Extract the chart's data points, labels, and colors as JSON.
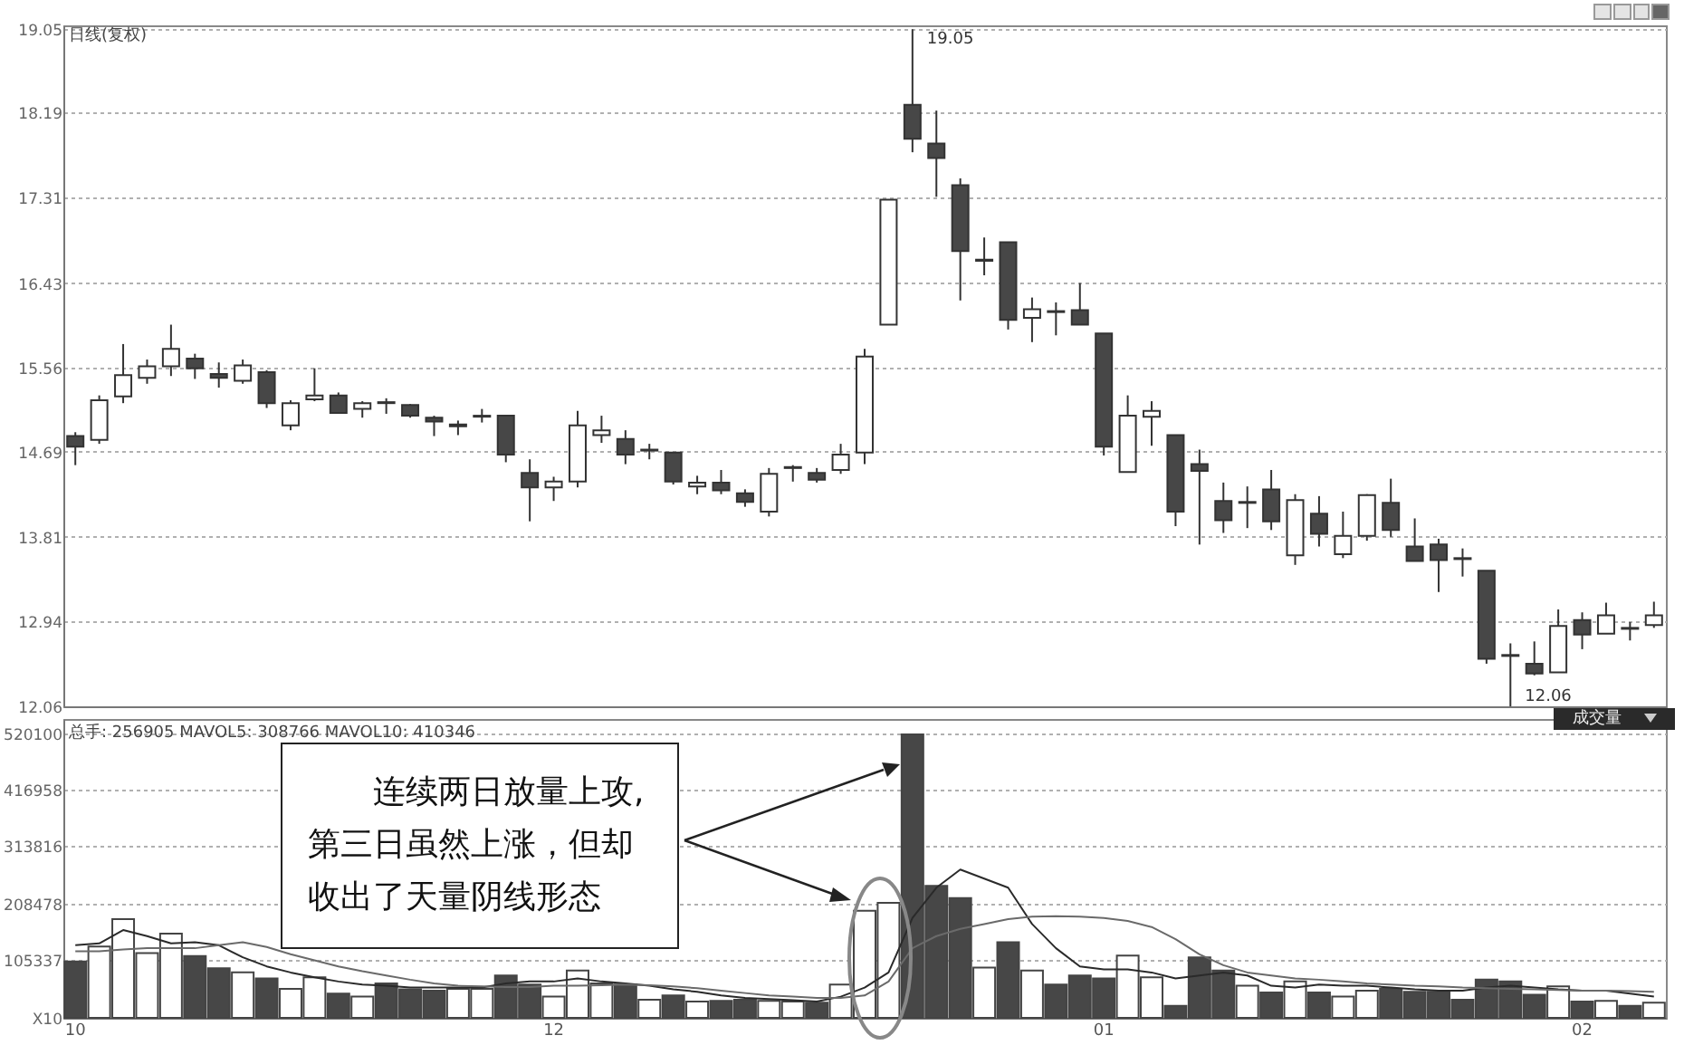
{
  "chart_data": [
    {
      "type": "candlestick",
      "title": "日线(复权)",
      "categories": [
        "10",
        null,
        null,
        null,
        null,
        null,
        null,
        null,
        null,
        null,
        null,
        null,
        null,
        null,
        null,
        null,
        null,
        null,
        null,
        null,
        "12",
        null,
        null,
        null,
        null,
        null,
        null,
        null,
        null,
        null,
        null,
        null,
        null,
        null,
        null,
        null,
        null,
        null,
        null,
        null,
        null,
        null,
        null,
        "01",
        null,
        null,
        null,
        null,
        null,
        null,
        null,
        null,
        null,
        null,
        null,
        null,
        null,
        null,
        null,
        null,
        null,
        null,
        null,
        "02",
        null,
        null,
        null
      ],
      "ohlc": [
        [
          14.85,
          14.89,
          14.55,
          14.74
        ],
        [
          14.81,
          15.27,
          14.77,
          15.22
        ],
        [
          15.26,
          15.8,
          15.19,
          15.48
        ],
        [
          15.45,
          15.64,
          15.39,
          15.57
        ],
        [
          15.57,
          16.0,
          15.47,
          15.75
        ],
        [
          15.65,
          15.7,
          15.44,
          15.55
        ],
        [
          15.49,
          15.61,
          15.35,
          15.45
        ],
        [
          15.42,
          15.64,
          15.39,
          15.58
        ],
        [
          15.51,
          15.53,
          15.14,
          15.19
        ],
        [
          14.96,
          15.22,
          14.91,
          15.19
        ],
        [
          15.23,
          15.55,
          15.21,
          15.27
        ],
        [
          15.27,
          15.3,
          15.08,
          15.09
        ],
        [
          15.13,
          15.21,
          15.04,
          15.19
        ],
        [
          15.19,
          15.24,
          15.08,
          15.2
        ],
        [
          15.17,
          15.18,
          15.04,
          15.06
        ],
        [
          15.04,
          15.06,
          14.85,
          15.0
        ],
        [
          14.97,
          15.01,
          14.86,
          14.95
        ],
        [
          15.05,
          15.13,
          14.99,
          15.06
        ],
        [
          15.06,
          15.06,
          14.58,
          14.66
        ],
        [
          14.47,
          14.61,
          13.97,
          14.32
        ],
        [
          14.32,
          14.43,
          14.18,
          14.38
        ],
        [
          14.38,
          15.11,
          14.32,
          14.96
        ],
        [
          14.86,
          15.06,
          14.78,
          14.91
        ],
        [
          14.82,
          14.91,
          14.56,
          14.66
        ],
        [
          14.71,
          14.77,
          14.61,
          14.7
        ],
        [
          14.68,
          14.68,
          14.35,
          14.38
        ],
        [
          14.33,
          14.44,
          14.25,
          14.37
        ],
        [
          14.37,
          14.5,
          14.25,
          14.29
        ],
        [
          14.26,
          14.3,
          14.12,
          14.17
        ],
        [
          14.07,
          14.52,
          14.02,
          14.46
        ],
        [
          14.52,
          14.55,
          14.38,
          14.53
        ],
        [
          14.47,
          14.52,
          14.37,
          14.4
        ],
        [
          14.5,
          14.77,
          14.46,
          14.66
        ],
        [
          14.68,
          15.75,
          14.56,
          15.67
        ],
        [
          16.0,
          17.29,
          16.0,
          17.29
        ],
        [
          18.27,
          19.05,
          17.78,
          17.92
        ],
        [
          17.87,
          18.21,
          17.32,
          17.72
        ],
        [
          17.44,
          17.51,
          16.25,
          16.76
        ],
        [
          16.66,
          16.9,
          16.51,
          16.67
        ],
        [
          16.85,
          16.85,
          15.95,
          16.05
        ],
        [
          16.07,
          16.28,
          15.82,
          16.16
        ],
        [
          16.14,
          16.23,
          15.89,
          16.13
        ],
        [
          16.15,
          16.43,
          16.0,
          16.0
        ],
        [
          15.91,
          15.91,
          14.65,
          14.74
        ],
        [
          14.48,
          15.27,
          14.48,
          15.06
        ],
        [
          15.05,
          15.21,
          14.75,
          15.11
        ],
        [
          14.86,
          14.86,
          13.92,
          14.07
        ],
        [
          14.56,
          14.71,
          13.73,
          14.49
        ],
        [
          14.18,
          14.37,
          13.85,
          13.98
        ],
        [
          14.16,
          14.33,
          13.9,
          14.17
        ],
        [
          14.3,
          14.5,
          13.88,
          13.97
        ],
        [
          13.62,
          14.25,
          13.52,
          14.19
        ],
        [
          14.05,
          14.23,
          13.71,
          13.84
        ],
        [
          13.63,
          14.07,
          13.59,
          13.82
        ],
        [
          13.82,
          14.25,
          13.77,
          14.24
        ],
        [
          14.16,
          14.41,
          13.81,
          13.88
        ],
        [
          13.71,
          14.0,
          13.56,
          13.56
        ],
        [
          13.73,
          13.79,
          13.24,
          13.57
        ],
        [
          13.59,
          13.69,
          13.4,
          13.58
        ],
        [
          13.46,
          13.46,
          12.5,
          12.55
        ],
        [
          12.59,
          12.71,
          12.06,
          12.58
        ],
        [
          12.5,
          12.73,
          12.38,
          12.4
        ],
        [
          12.41,
          13.06,
          12.41,
          12.89
        ],
        [
          12.95,
          13.03,
          12.65,
          12.8
        ],
        [
          12.81,
          13.13,
          12.81,
          13.0
        ],
        [
          12.86,
          12.93,
          12.74,
          12.87
        ],
        [
          12.9,
          13.14,
          12.87,
          13.0
        ]
      ],
      "colors": [
        "#474747",
        "#ffffff",
        "#ffffff",
        "#ffffff",
        "#ffffff",
        "#474747",
        "#474747",
        "#ffffff",
        "#474747",
        "#ffffff",
        "#ffffff",
        "#474747",
        "#ffffff",
        "#ffffff",
        "#474747",
        "#474747",
        "#474747",
        "#ffffff",
        "#474747",
        "#474747",
        "#ffffff",
        "#ffffff",
        "#ffffff",
        "#474747",
        "#474747",
        "#474747",
        "#ffffff",
        "#474747",
        "#474747",
        "#ffffff",
        "#ffffff",
        "#474747",
        "#ffffff",
        "#ffffff",
        "#ffffff",
        "#474747",
        "#474747",
        "#474747",
        "#ffffff",
        "#474747",
        "#ffffff",
        "#474747",
        "#474747",
        "#474747",
        "#ffffff",
        "#ffffff",
        "#474747",
        "#474747",
        "#474747",
        "#ffffff",
        "#474747",
        "#ffffff",
        "#474747",
        "#ffffff",
        "#ffffff",
        "#474747",
        "#474747",
        "#474747",
        "#474747",
        "#474747",
        "#474747",
        "#474747",
        "#ffffff",
        "#474747",
        "#ffffff",
        "#ffffff",
        "#ffffff"
      ],
      "ylim": [
        12.06,
        19.09
      ],
      "yticks": [
        19.05,
        18.19,
        17.31,
        16.43,
        15.56,
        14.69,
        13.81,
        12.94,
        12.06
      ],
      "grid": "y",
      "tick_labels": "y",
      "annotations": [
        "19.05",
        "12.06"
      ]
    },
    {
      "type": "bar",
      "title": "总手: 256905 MAVOL5: 308766 MAVOL10: 410346",
      "categories": [
        "10",
        null,
        null,
        null,
        null,
        null,
        null,
        null,
        null,
        null,
        null,
        null,
        null,
        null,
        null,
        null,
        null,
        null,
        null,
        null,
        "12",
        null,
        null,
        null,
        null,
        null,
        null,
        null,
        null,
        null,
        null,
        null,
        null,
        null,
        null,
        null,
        null,
        null,
        null,
        null,
        null,
        null,
        null,
        "01",
        null,
        null,
        null,
        null,
        null,
        null,
        null,
        null,
        null,
        null,
        null,
        null,
        null,
        null,
        null,
        null,
        null,
        null,
        null,
        "02",
        null,
        null,
        null
      ],
      "series": [
        {
          "type": "bar",
          "colors": [
            "#474747",
            "#ffffff",
            "#ffffff",
            "#ffffff",
            "#ffffff",
            "#474747",
            "#474747",
            "#ffffff",
            "#474747",
            "#ffffff",
            "#ffffff",
            "#474747",
            "#ffffff",
            "#474747",
            "#474747",
            "#474747",
            "#ffffff",
            "#ffffff",
            "#474747",
            "#474747",
            "#ffffff",
            "#ffffff",
            "#ffffff",
            "#474747",
            "#ffffff",
            "#474747",
            "#ffffff",
            "#474747",
            "#474747",
            "#ffffff",
            "#ffffff",
            "#474747",
            "#ffffff",
            "#ffffff",
            "#ffffff",
            "#474747",
            "#474747",
            "#474747",
            "#ffffff",
            "#474747",
            "#ffffff",
            "#474747",
            "#474747",
            "#474747",
            "#ffffff",
            "#ffffff",
            "#474747",
            "#474747",
            "#474747",
            "#ffffff",
            "#474747",
            "#ffffff",
            "#474747",
            "#ffffff",
            "#ffffff",
            "#474747",
            "#474747",
            "#474747",
            "#474747",
            "#474747",
            "#474747",
            "#474747",
            "#ffffff",
            "#474747",
            "#ffffff",
            "#474747",
            "#ffffff"
          ],
          "values": [
            103000,
            130500,
            180300,
            118300,
            153700,
            112800,
            90700,
            83000,
            71900,
            53100,
            74100,
            44200,
            38700,
            63000,
            52000,
            49800,
            53100,
            53100,
            77400,
            60800,
            38700,
            86300,
            63000,
            60800,
            33200,
            40900,
            29900,
            31000,
            33200,
            31000,
            29900,
            27700,
            60800,
            195800,
            210100,
            518000,
            241100,
            219000,
            91800,
            138300,
            86300,
            60800,
            77400,
            71900,
            113900,
            74100,
            22100,
            110600,
            86300,
            58600,
            46500,
            66400,
            46500,
            38700,
            49800,
            53100,
            47600,
            47600,
            33200,
            69700,
            66400,
            42000,
            57500,
            29900,
            31000,
            22100,
            27700
          ]
        },
        {
          "type": "line",
          "color": "#2a2a2a",
          "values": [
            132700,
            136000,
            160400,
            149300,
            136000,
            138300,
            132700,
            110600,
            94000,
            82900,
            74100,
            66400,
            60800,
            58600,
            55300,
            55300,
            55300,
            55300,
            63000,
            66400,
            66400,
            71900,
            66400,
            63000,
            58600,
            52000,
            47600,
            40900,
            36500,
            34300,
            32100,
            29900,
            38700,
            55300,
            82900,
            182500,
            237800,
            271000,
            254400,
            237800,
            171400,
            127200,
            94000,
            88500,
            88500,
            82900,
            71900,
            77400,
            82900,
            77400,
            58600,
            55300,
            60800,
            58600,
            58600,
            55300,
            52000,
            49800,
            49800,
            55300,
            58600,
            55300,
            52000,
            49800,
            49800,
            44200,
            38700
          ]
        },
        {
          "type": "line",
          "color": "#6a6a6a",
          "values": [
            121700,
            121700,
            125000,
            127200,
            127200,
            127200,
            132700,
            138300,
            129400,
            116100,
            105100,
            94000,
            85200,
            77400,
            69700,
            63000,
            58600,
            57500,
            56400,
            56400,
            58600,
            58600,
            59700,
            60800,
            59700,
            57500,
            54200,
            49800,
            45300,
            40900,
            38700,
            36500,
            36500,
            40900,
            66400,
            127200,
            149300,
            162600,
            171400,
            180300,
            184700,
            185800,
            184700,
            182500,
            177000,
            165900,
            143800,
            116100,
            96200,
            82900,
            77400,
            71900,
            69700,
            66400,
            63000,
            60800,
            58600,
            57500,
            55300,
            54200,
            53100,
            52000,
            50900,
            49800,
            49800,
            48700,
            47600
          ]
        }
      ],
      "ylim": [
        0,
        546000
      ],
      "yticks": [
        {
          "value": 0,
          "label": "X10"
        },
        105337,
        208478,
        313816,
        416958,
        520100
      ],
      "grid": "y",
      "annotations": [
        "连续两日放量上攻,第三日虽然上涨，但却收出了天量阴线形态",
        "成交量"
      ]
    }
  ]
}
